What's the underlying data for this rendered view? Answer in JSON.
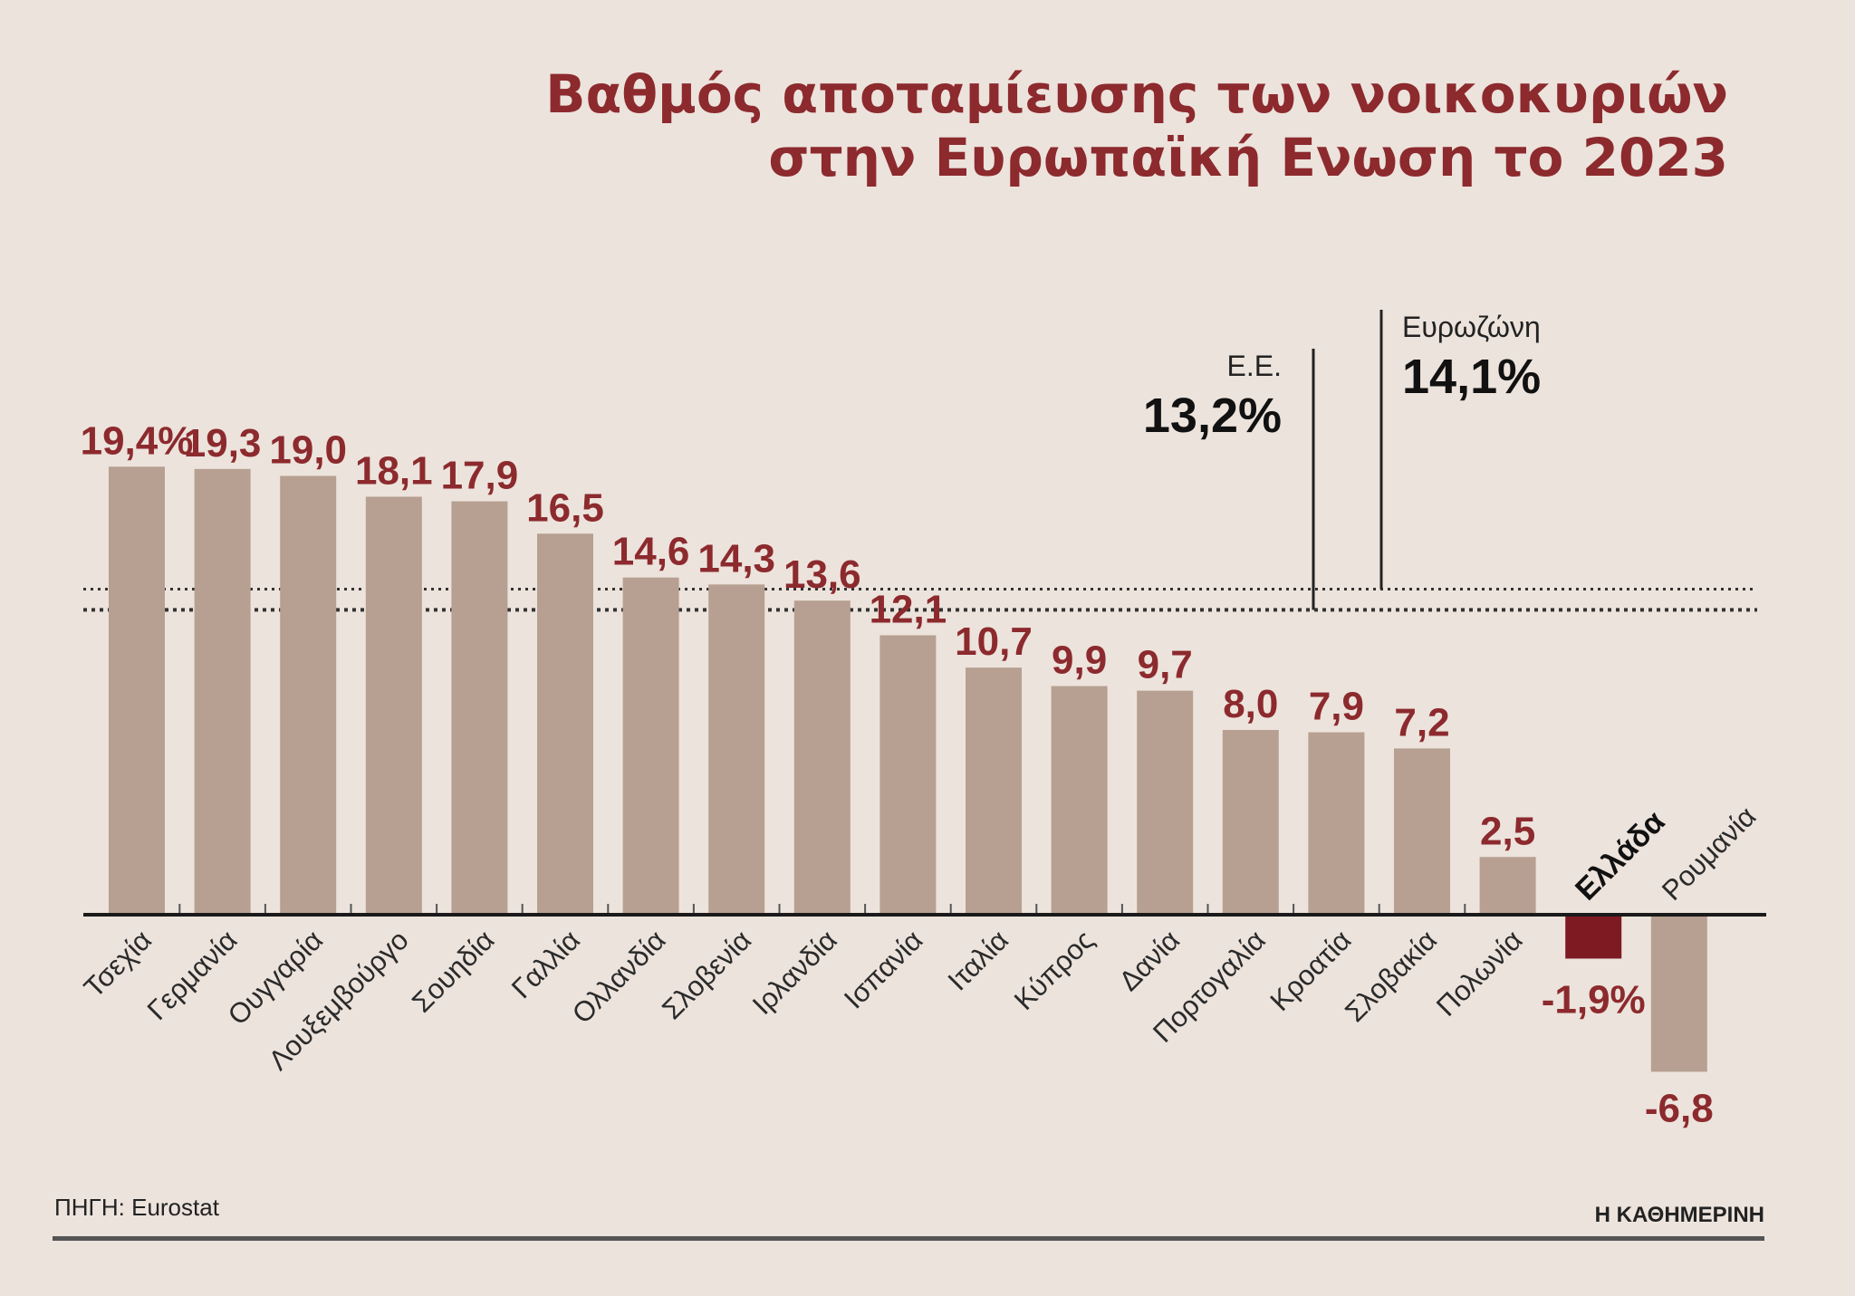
{
  "chart_data": {
    "type": "bar",
    "title": "Βαθμός αποταμίευσης των νοικοκυριών στην Ευρωπαϊκή Ενωση το 2023",
    "title_lines": [
      "Βαθμός αποταμίευσης των νοικοκυριών",
      "στην Ευρωπαϊκή Ενωση το 2023"
    ],
    "categories": [
      "Τσεχία",
      "Γερμανία",
      "Ουγγαρία",
      "Λουξεμβούργο",
      "Σουηδία",
      "Γαλλία",
      "Ολλανδία",
      "Σλοβενία",
      "Ιρλανδία",
      "Ισπανία",
      "Ιταλία",
      "Κύπρος",
      "Δανία",
      "Πορτογαλία",
      "Κροατία",
      "Σλοβακία",
      "Πολωνία",
      "Ελλάδα",
      "Ρουμανία"
    ],
    "values": [
      19.4,
      19.3,
      19.0,
      18.1,
      17.9,
      16.5,
      14.6,
      14.3,
      13.6,
      12.1,
      10.7,
      9.9,
      9.7,
      8.0,
      7.9,
      7.2,
      2.5,
      -1.9,
      -6.8
    ],
    "value_labels": [
      "19,4%",
      "19,3",
      "19,0",
      "18,1",
      "17,9",
      "16,5",
      "14,6",
      "14,3",
      "13,6",
      "12,1",
      "10,7",
      "9,9",
      "9,7",
      "8,0",
      "7,9",
      "7,2",
      "2,5",
      "-1,9%",
      "-6,8"
    ],
    "highlight_category": "Ελλάδα",
    "unit": "%",
    "reference_lines": [
      {
        "label": "Ε.Ε.",
        "value": 13.2,
        "value_label": "13,2%"
      },
      {
        "label": "Ευρωζώνη",
        "value": 14.1,
        "value_label": "14,1%"
      }
    ],
    "ylim": [
      -7,
      20
    ],
    "xlabel": "",
    "ylabel": "",
    "grid": false,
    "colors": {
      "bar": "#b7a091",
      "highlight": "#7e1a22",
      "value_text": "#8c2a2e",
      "axis": "#1a1a1a"
    }
  },
  "footer": {
    "source": "ΠΗΓΗ: Eurostat",
    "publisher": "Η ΚΑΘΗΜΕΡΙΝΗ"
  }
}
